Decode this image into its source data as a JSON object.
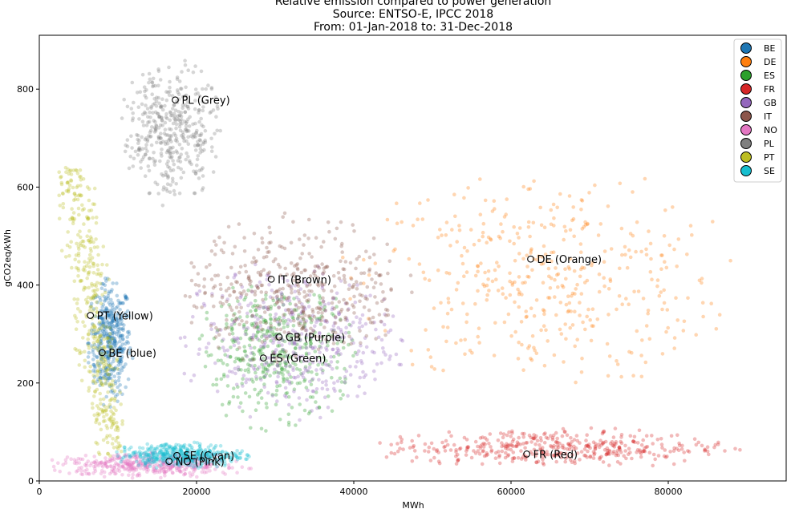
{
  "chart_data": {
    "type": "scatter",
    "title": [
      "Relative emission compared to power generation",
      "Source: ENTSO-E, IPCC 2018",
      "From: 01-Jan-2018 to: 31-Dec-2018"
    ],
    "xlabel": "MWh",
    "ylabel": "gCO2eq/kWh",
    "xlim": [
      0,
      95000
    ],
    "ylim": [
      0,
      910
    ],
    "x_ticks": [
      0,
      20000,
      40000,
      60000,
      80000
    ],
    "x_tick_labels": [
      "0",
      "20000",
      "40000",
      "60000",
      "80000"
    ],
    "y_ticks": [
      0,
      200,
      400,
      600,
      800
    ],
    "y_tick_labels": [
      "0",
      "200",
      "400",
      "600",
      "800"
    ],
    "grid": false,
    "legend_position": "top-right",
    "series": [
      {
        "name": "BE",
        "color": "#1f77b4",
        "x_range": [
          6000,
          12000
        ],
        "y_range": [
          150,
          420
        ],
        "mean": {
          "x": 8000,
          "y": 262
        }
      },
      {
        "name": "DE",
        "color": "#ff7f0e",
        "x_range": [
          38000,
          90000
        ],
        "y_range": [
          170,
          650
        ],
        "mean": {
          "x": 62500,
          "y": 453
        }
      },
      {
        "name": "ES",
        "color": "#2ca02c",
        "x_range": [
          19000,
          41000
        ],
        "y_range": [
          100,
          420
        ],
        "mean": {
          "x": 28500,
          "y": 251
        }
      },
      {
        "name": "FR",
        "color": "#d62728",
        "x_range": [
          41000,
          90000
        ],
        "y_range": [
          25,
          110
        ],
        "mean": {
          "x": 62000,
          "y": 55
        }
      },
      {
        "name": "GB",
        "color": "#9467bd",
        "x_range": [
          17000,
          47000
        ],
        "y_range": [
          120,
          450
        ],
        "mean": {
          "x": 30500,
          "y": 294
        }
      },
      {
        "name": "IT",
        "color": "#8c564b",
        "x_range": [
          17000,
          48000
        ],
        "y_range": [
          230,
          550
        ],
        "mean": {
          "x": 29500,
          "y": 412
        }
      },
      {
        "name": "NO",
        "color": "#e377c2",
        "x_range": [
          500,
          28000
        ],
        "y_range": [
          5,
          60
        ],
        "mean": {
          "x": 16500,
          "y": 40
        }
      },
      {
        "name": "PL",
        "color": "#7f7f7f",
        "x_range": [
          10000,
          23500
        ],
        "y_range": [
          560,
          865
        ],
        "mean": {
          "x": 17300,
          "y": 778
        }
      },
      {
        "name": "PT",
        "color": "#bcbd22",
        "x_range": [
          2500,
          11000
        ],
        "y_range": [
          50,
          640
        ],
        "mean": {
          "x": 6500,
          "y": 338
        }
      },
      {
        "name": "SE",
        "color": "#17becf",
        "x_range": [
          9000,
          27000
        ],
        "y_range": [
          25,
          80
        ],
        "mean": {
          "x": 17500,
          "y": 52
        }
      }
    ],
    "annotations": [
      {
        "text": "PL (Grey)",
        "x": 17300,
        "y": 778
      },
      {
        "text": "DE (Orange)",
        "x": 62500,
        "y": 453
      },
      {
        "text": "IT (Brown)",
        "x": 29500,
        "y": 412
      },
      {
        "text": "PT (Yellow)",
        "x": 6500,
        "y": 338
      },
      {
        "text": "GB (Purple)",
        "x": 30500,
        "y": 294
      },
      {
        "text": "BE (blue)",
        "x": 8000,
        "y": 262
      },
      {
        "text": "ES (Green)",
        "x": 28500,
        "y": 251
      },
      {
        "text": "SE (Cyan)",
        "x": 17500,
        "y": 52
      },
      {
        "text": "FR (Red)",
        "x": 62000,
        "y": 55
      },
      {
        "text": "NO (Pink)",
        "x": 16500,
        "y": 40
      }
    ]
  }
}
